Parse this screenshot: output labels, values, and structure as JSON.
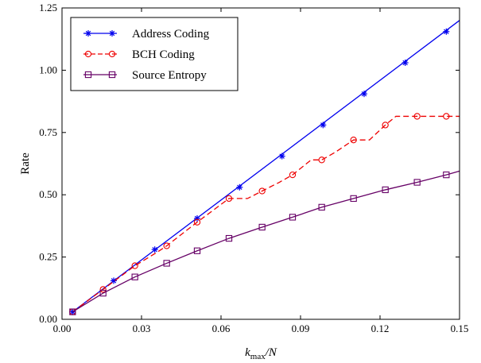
{
  "chart_data": {
    "type": "line",
    "title": "",
    "xlabel_parts": {
      "k": "k",
      "sub": "max",
      "rest": "/N"
    },
    "ylabel": "Rate",
    "xlim": [
      0.0,
      0.15
    ],
    "ylim": [
      0.0,
      1.25
    ],
    "xticks": [
      "0.00",
      "0.03",
      "0.06",
      "0.09",
      "0.12",
      "0.15"
    ],
    "yticks": [
      "0.00",
      "0.25",
      "0.50",
      "0.75",
      "1.00",
      "1.25"
    ],
    "grid": false,
    "legend_position": "top-left",
    "series": [
      {
        "name": "Address Coding",
        "color": "#0000ee",
        "dash": "solid",
        "marker": "asterisk",
        "line_x": [
          0.004,
          0.15
        ],
        "line_y": [
          0.03,
          1.2
        ],
        "x": [
          0.004,
          0.0195,
          0.035,
          0.051,
          0.067,
          0.083,
          0.0985,
          0.114,
          0.1295,
          0.145
        ],
        "y": [
          0.03,
          0.155,
          0.28,
          0.405,
          0.53,
          0.655,
          0.78,
          0.905,
          1.03,
          1.155
        ]
      },
      {
        "name": "BCH Coding",
        "color": "#ee0000",
        "dash": "dashed",
        "marker": "circle",
        "line_x": [
          0.004,
          0.0155,
          0.0275,
          0.036,
          0.0395,
          0.051,
          0.063,
          0.07,
          0.0755,
          0.082,
          0.087,
          0.094,
          0.098,
          0.103,
          0.11,
          0.116,
          0.122,
          0.126,
          0.134,
          0.145,
          0.15
        ],
        "line_y": [
          0.03,
          0.12,
          0.215,
          0.27,
          0.295,
          0.39,
          0.485,
          0.485,
          0.515,
          0.55,
          0.58,
          0.64,
          0.64,
          0.67,
          0.72,
          0.72,
          0.78,
          0.815,
          0.815,
          0.815,
          0.815
        ],
        "x": [
          0.004,
          0.0155,
          0.0275,
          0.0395,
          0.051,
          0.063,
          0.0755,
          0.087,
          0.098,
          0.11,
          0.122,
          0.134,
          0.145
        ],
        "y": [
          0.03,
          0.12,
          0.215,
          0.295,
          0.39,
          0.485,
          0.515,
          0.58,
          0.64,
          0.72,
          0.78,
          0.815,
          0.815
        ]
      },
      {
        "name": "Source Entropy",
        "color": "#660066",
        "dash": "solid",
        "marker": "square",
        "line_x": [
          0.004,
          0.0155,
          0.0275,
          0.0395,
          0.051,
          0.063,
          0.0755,
          0.087,
          0.098,
          0.11,
          0.122,
          0.134,
          0.145,
          0.15
        ],
        "line_y": [
          0.03,
          0.105,
          0.17,
          0.225,
          0.275,
          0.325,
          0.37,
          0.41,
          0.45,
          0.485,
          0.52,
          0.55,
          0.58,
          0.595
        ],
        "x": [
          0.004,
          0.0155,
          0.0275,
          0.0395,
          0.051,
          0.063,
          0.0755,
          0.087,
          0.098,
          0.11,
          0.122,
          0.134,
          0.145
        ],
        "y": [
          0.03,
          0.105,
          0.17,
          0.225,
          0.275,
          0.325,
          0.37,
          0.41,
          0.45,
          0.485,
          0.52,
          0.55,
          0.58
        ]
      }
    ]
  }
}
